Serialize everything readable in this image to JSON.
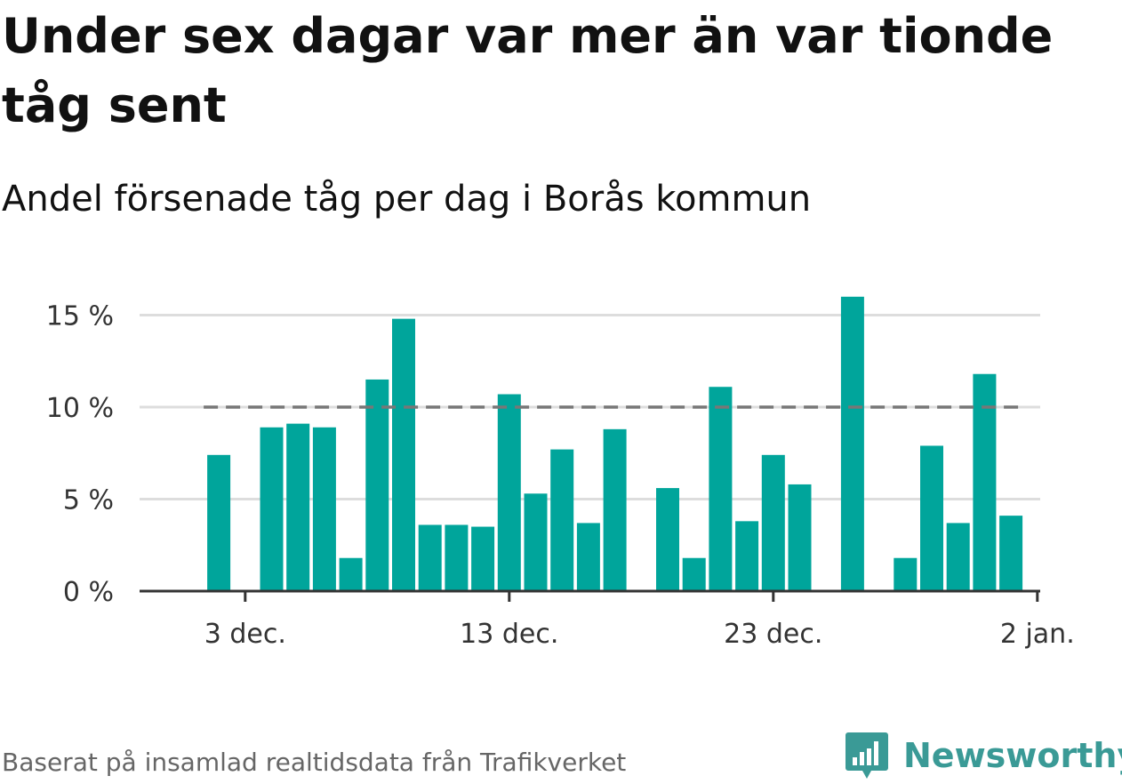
{
  "title": "Under sex dagar var mer än var tionde tåg sent",
  "subtitle": "Andel försenade tåg per dag i Borås kommun",
  "source": "Baserat på insamlad realtidsdata från Trafikverket",
  "logo": {
    "icon": "newsworthy-logo-icon",
    "text": "Newsworthy"
  },
  "colors": {
    "bar": "#00a59b",
    "reference_line": "#777777",
    "grid": "#dddddd",
    "axis": "#333333",
    "logo": "#3a9a96"
  },
  "chart_data": {
    "type": "bar",
    "title": "Under sex dagar var mer än var tionde tåg sent",
    "subtitle": "Andel försenade tåg per dag i Borås kommun",
    "xlabel": "",
    "ylabel": "",
    "x_type": "date",
    "x": [
      "2023-12-02",
      "2023-12-03",
      "2023-12-04",
      "2023-12-05",
      "2023-12-06",
      "2023-12-07",
      "2023-12-08",
      "2023-12-09",
      "2023-12-10",
      "2023-12-11",
      "2023-12-12",
      "2023-12-13",
      "2023-12-14",
      "2023-12-15",
      "2023-12-16",
      "2023-12-17",
      "2023-12-18",
      "2023-12-19",
      "2023-12-20",
      "2023-12-21",
      "2023-12-22",
      "2023-12-23",
      "2023-12-24",
      "2023-12-25",
      "2023-12-26",
      "2023-12-27",
      "2023-12-28",
      "2023-12-29",
      "2023-12-30",
      "2023-12-31",
      "2024-01-01",
      "2024-01-02"
    ],
    "values": [
      7.4,
      null,
      8.9,
      9.1,
      8.9,
      1.8,
      11.5,
      14.8,
      3.6,
      3.6,
      3.5,
      10.7,
      5.3,
      7.7,
      3.7,
      8.8,
      null,
      5.6,
      1.8,
      11.1,
      3.8,
      7.4,
      5.8,
      null,
      16.0,
      null,
      1.8,
      7.9,
      3.7,
      11.8,
      4.1,
      null
    ],
    "reference_line": 10,
    "yticks": [
      0,
      5,
      10,
      15
    ],
    "ytick_labels": [
      "0 %",
      "5 %",
      "10 %",
      "15 %"
    ],
    "ylim": [
      0,
      16
    ],
    "xticks": [
      {
        "date": "2023-12-03",
        "label": "3 dec."
      },
      {
        "date": "2023-12-13",
        "label": "13 dec."
      },
      {
        "date": "2023-12-23",
        "label": "23 dec."
      },
      {
        "date": "2024-01-02",
        "label": "2 jan."
      }
    ],
    "xlim": [
      "2023-11-29",
      "2024-01-02"
    ],
    "grid": true,
    "legend": "none"
  }
}
